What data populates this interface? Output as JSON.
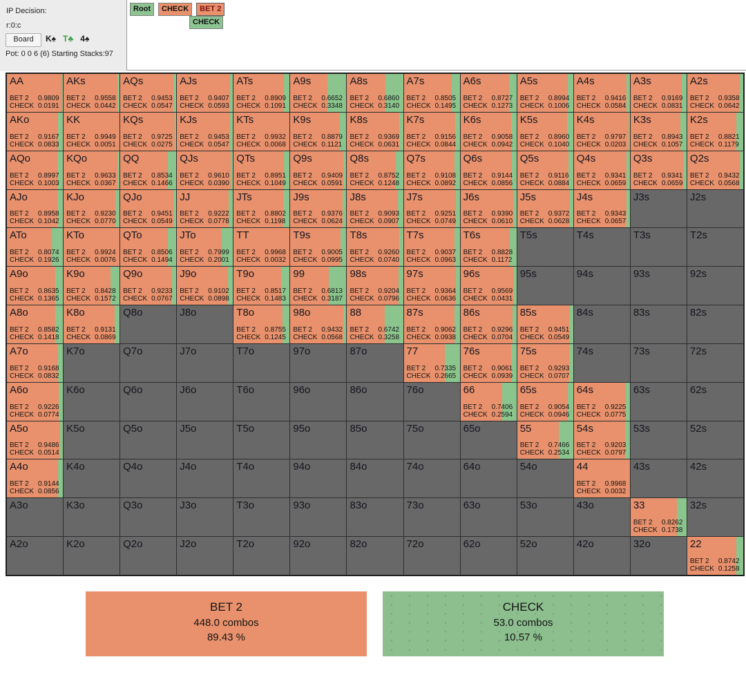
{
  "header": {
    "ip_decision_label": "IP Decision:",
    "node_id": "r:0:c",
    "board_button_label": "Board",
    "board_cards": [
      {
        "rank": "K",
        "suit": "♠",
        "color": "#1a1a1a"
      },
      {
        "rank": "T",
        "suit": "♣",
        "color": "#3f9e4a"
      },
      {
        "rank": "4",
        "suit": "♠",
        "color": "#1a1a1a"
      }
    ],
    "pot_line": "Pot: 0 0 6 (6) Starting Stacks:97"
  },
  "tree_nav": {
    "buttons": [
      {
        "label": "Root",
        "color": "green",
        "selected": false
      },
      {
        "label": "CHECK",
        "color": "orange",
        "selected": false
      },
      {
        "label": "BET 2",
        "color": "orange",
        "selected": true
      }
    ],
    "sub_buttons": [
      {
        "label": "CHECK",
        "color": "green",
        "selected": false
      }
    ]
  },
  "colors": {
    "bet": "#e8916c",
    "check": "#8bc58d",
    "not_in_range": "#686868"
  },
  "matrix": {
    "actions": [
      "BET 2",
      "CHECK"
    ],
    "rows": [
      [
        {
          "hand": "AA",
          "bet2": "0.9809",
          "check": "0.0191"
        },
        {
          "hand": "AKs",
          "bet2": "0.9558",
          "check": "0.0442"
        },
        {
          "hand": "AQs",
          "bet2": "0.9453",
          "check": "0.0547"
        },
        {
          "hand": "AJs",
          "bet2": "0.9407",
          "check": "0.0593"
        },
        {
          "hand": "ATs",
          "bet2": "0.8909",
          "check": "0.1091"
        },
        {
          "hand": "A9s",
          "bet2": "0.6652",
          "check": "0.3348"
        },
        {
          "hand": "A8s",
          "bet2": "0.6860",
          "check": "0.3140"
        },
        {
          "hand": "A7s",
          "bet2": "0.8505",
          "check": "0.1495"
        },
        {
          "hand": "A6s",
          "bet2": "0.8727",
          "check": "0.1273"
        },
        {
          "hand": "A5s",
          "bet2": "0.8994",
          "check": "0.1006"
        },
        {
          "hand": "A4s",
          "bet2": "0.9416",
          "check": "0.0584"
        },
        {
          "hand": "A3s",
          "bet2": "0.9169",
          "check": "0.0831"
        },
        {
          "hand": "A2s",
          "bet2": "0.9358",
          "check": "0.0642"
        }
      ],
      [
        {
          "hand": "AKo",
          "bet2": "0.9167",
          "check": "0.0833"
        },
        {
          "hand": "KK",
          "bet2": "0.9949",
          "check": "0.0051"
        },
        {
          "hand": "KQs",
          "bet2": "0.9725",
          "check": "0.0275"
        },
        {
          "hand": "KJs",
          "bet2": "0.9453",
          "check": "0.0547"
        },
        {
          "hand": "KTs",
          "bet2": "0.9932",
          "check": "0.0068"
        },
        {
          "hand": "K9s",
          "bet2": "0.8879",
          "check": "0.1121"
        },
        {
          "hand": "K8s",
          "bet2": "0.9369",
          "check": "0.0631"
        },
        {
          "hand": "K7s",
          "bet2": "0.9156",
          "check": "0.0844"
        },
        {
          "hand": "K6s",
          "bet2": "0.9058",
          "check": "0.0942"
        },
        {
          "hand": "K5s",
          "bet2": "0.8960",
          "check": "0.1040"
        },
        {
          "hand": "K4s",
          "bet2": "0.9797",
          "check": "0.0203"
        },
        {
          "hand": "K3s",
          "bet2": "0.8943",
          "check": "0.1057"
        },
        {
          "hand": "K2s",
          "bet2": "0.8821",
          "check": "0.1179"
        }
      ],
      [
        {
          "hand": "AQo",
          "bet2": "0.8997",
          "check": "0.1003"
        },
        {
          "hand": "KQo",
          "bet2": "0.9633",
          "check": "0.0367"
        },
        {
          "hand": "QQ",
          "bet2": "0.8534",
          "check": "0.1466"
        },
        {
          "hand": "QJs",
          "bet2": "0.9610",
          "check": "0.0390"
        },
        {
          "hand": "QTs",
          "bet2": "0.8951",
          "check": "0.1049"
        },
        {
          "hand": "Q9s",
          "bet2": "0.9409",
          "check": "0.0591"
        },
        {
          "hand": "Q8s",
          "bet2": "0.8752",
          "check": "0.1248"
        },
        {
          "hand": "Q7s",
          "bet2": "0.9108",
          "check": "0.0892"
        },
        {
          "hand": "Q6s",
          "bet2": "0.9144",
          "check": "0.0856"
        },
        {
          "hand": "Q5s",
          "bet2": "0.9116",
          "check": "0.0884"
        },
        {
          "hand": "Q4s",
          "bet2": "0.9341",
          "check": "0.0659"
        },
        {
          "hand": "Q3s",
          "bet2": "0.9341",
          "check": "0.0659"
        },
        {
          "hand": "Q2s",
          "bet2": "0.9432",
          "check": "0.0568"
        }
      ],
      [
        {
          "hand": "AJo",
          "bet2": "0.8958",
          "check": "0.1042"
        },
        {
          "hand": "KJo",
          "bet2": "0.9230",
          "check": "0.0770"
        },
        {
          "hand": "QJo",
          "bet2": "0.9451",
          "check": "0.0549"
        },
        {
          "hand": "JJ",
          "bet2": "0.9222",
          "check": "0.0778"
        },
        {
          "hand": "JTs",
          "bet2": "0.8802",
          "check": "0.1198"
        },
        {
          "hand": "J9s",
          "bet2": "0.9376",
          "check": "0.0624"
        },
        {
          "hand": "J8s",
          "bet2": "0.9093",
          "check": "0.0907"
        },
        {
          "hand": "J7s",
          "bet2": "0.9251",
          "check": "0.0749"
        },
        {
          "hand": "J6s",
          "bet2": "0.9390",
          "check": "0.0610"
        },
        {
          "hand": "J5s",
          "bet2": "0.9372",
          "check": "0.0628"
        },
        {
          "hand": "J4s",
          "bet2": "0.9343",
          "check": "0.0657"
        },
        {
          "hand": "J3s"
        },
        {
          "hand": "J2s"
        }
      ],
      [
        {
          "hand": "ATo",
          "bet2": "0.8074",
          "check": "0.1926"
        },
        {
          "hand": "KTo",
          "bet2": "0.9924",
          "check": "0.0076"
        },
        {
          "hand": "QTo",
          "bet2": "0.8506",
          "check": "0.1494"
        },
        {
          "hand": "JTo",
          "bet2": "0.7999",
          "check": "0.2001"
        },
        {
          "hand": "TT",
          "bet2": "0.9968",
          "check": "0.0032"
        },
        {
          "hand": "T9s",
          "bet2": "0.9005",
          "check": "0.0995"
        },
        {
          "hand": "T8s",
          "bet2": "0.9260",
          "check": "0.0740"
        },
        {
          "hand": "T7s",
          "bet2": "0.9037",
          "check": "0.0963"
        },
        {
          "hand": "T6s",
          "bet2": "0.8828",
          "check": "0.1172"
        },
        {
          "hand": "T5s"
        },
        {
          "hand": "T4s"
        },
        {
          "hand": "T3s"
        },
        {
          "hand": "T2s"
        }
      ],
      [
        {
          "hand": "A9o",
          "bet2": "0.8635",
          "check": "0.1365"
        },
        {
          "hand": "K9o",
          "bet2": "0.8428",
          "check": "0.1572"
        },
        {
          "hand": "Q9o",
          "bet2": "0.9233",
          "check": "0.0767"
        },
        {
          "hand": "J9o",
          "bet2": "0.9102",
          "check": "0.0898"
        },
        {
          "hand": "T9o",
          "bet2": "0.8517",
          "check": "0.1483"
        },
        {
          "hand": "99",
          "bet2": "0.6813",
          "check": "0.3187"
        },
        {
          "hand": "98s",
          "bet2": "0.9204",
          "check": "0.0796"
        },
        {
          "hand": "97s",
          "bet2": "0.9364",
          "check": "0.0636"
        },
        {
          "hand": "96s",
          "bet2": "0.9569",
          "check": "0.0431"
        },
        {
          "hand": "95s"
        },
        {
          "hand": "94s"
        },
        {
          "hand": "93s"
        },
        {
          "hand": "92s"
        }
      ],
      [
        {
          "hand": "A8o",
          "bet2": "0.8582",
          "check": "0.1418"
        },
        {
          "hand": "K8o",
          "bet2": "0.9131",
          "check": "0.0869"
        },
        {
          "hand": "Q8o"
        },
        {
          "hand": "J8o"
        },
        {
          "hand": "T8o",
          "bet2": "0.8755",
          "check": "0.1245"
        },
        {
          "hand": "98o",
          "bet2": "0.9432",
          "check": "0.0568"
        },
        {
          "hand": "88",
          "bet2": "0.6742",
          "check": "0.3258"
        },
        {
          "hand": "87s",
          "bet2": "0.9062",
          "check": "0.0938"
        },
        {
          "hand": "86s",
          "bet2": "0.9296",
          "check": "0.0704"
        },
        {
          "hand": "85s",
          "bet2": "0.9451",
          "check": "0.0549"
        },
        {
          "hand": "84s"
        },
        {
          "hand": "83s"
        },
        {
          "hand": "82s"
        }
      ],
      [
        {
          "hand": "A7o",
          "bet2": "0.9168",
          "check": "0.0832"
        },
        {
          "hand": "K7o"
        },
        {
          "hand": "Q7o"
        },
        {
          "hand": "J7o"
        },
        {
          "hand": "T7o"
        },
        {
          "hand": "97o"
        },
        {
          "hand": "87o"
        },
        {
          "hand": "77",
          "bet2": "0.7335",
          "check": "0.2665"
        },
        {
          "hand": "76s",
          "bet2": "0.9061",
          "check": "0.0939"
        },
        {
          "hand": "75s",
          "bet2": "0.9293",
          "check": "0.0707"
        },
        {
          "hand": "74s"
        },
        {
          "hand": "73s"
        },
        {
          "hand": "72s"
        }
      ],
      [
        {
          "hand": "A6o",
          "bet2": "0.9226",
          "check": "0.0774"
        },
        {
          "hand": "K6o"
        },
        {
          "hand": "Q6o"
        },
        {
          "hand": "J6o"
        },
        {
          "hand": "T6o"
        },
        {
          "hand": "96o"
        },
        {
          "hand": "86o"
        },
        {
          "hand": "76o"
        },
        {
          "hand": "66",
          "bet2": "0.7406",
          "check": "0.2594"
        },
        {
          "hand": "65s",
          "bet2": "0.9054",
          "check": "0.0946"
        },
        {
          "hand": "64s",
          "bet2": "0.9225",
          "check": "0.0775"
        },
        {
          "hand": "63s"
        },
        {
          "hand": "62s"
        }
      ],
      [
        {
          "hand": "A5o",
          "bet2": "0.9486",
          "check": "0.0514"
        },
        {
          "hand": "K5o"
        },
        {
          "hand": "Q5o"
        },
        {
          "hand": "J5o"
        },
        {
          "hand": "T5o"
        },
        {
          "hand": "95o"
        },
        {
          "hand": "85o"
        },
        {
          "hand": "75o"
        },
        {
          "hand": "65o"
        },
        {
          "hand": "55",
          "bet2": "0.7466",
          "check": "0.2534"
        },
        {
          "hand": "54s",
          "bet2": "0.9203",
          "check": "0.0797"
        },
        {
          "hand": "53s"
        },
        {
          "hand": "52s"
        }
      ],
      [
        {
          "hand": "A4o",
          "bet2": "0.9144",
          "check": "0.0856"
        },
        {
          "hand": "K4o"
        },
        {
          "hand": "Q4o"
        },
        {
          "hand": "J4o"
        },
        {
          "hand": "T4o"
        },
        {
          "hand": "94o"
        },
        {
          "hand": "84o"
        },
        {
          "hand": "74o"
        },
        {
          "hand": "64o"
        },
        {
          "hand": "54o"
        },
        {
          "hand": "44",
          "bet2": "0.9968",
          "check": "0.0032"
        },
        {
          "hand": "43s"
        },
        {
          "hand": "42s"
        }
      ],
      [
        {
          "hand": "A3o"
        },
        {
          "hand": "K3o"
        },
        {
          "hand": "Q3o"
        },
        {
          "hand": "J3o"
        },
        {
          "hand": "T3o"
        },
        {
          "hand": "93o"
        },
        {
          "hand": "83o"
        },
        {
          "hand": "73o"
        },
        {
          "hand": "63o"
        },
        {
          "hand": "53o"
        },
        {
          "hand": "43o"
        },
        {
          "hand": "33",
          "bet2": "0.8262",
          "check": "0.1738"
        },
        {
          "hand": "32s"
        }
      ],
      [
        {
          "hand": "A2o"
        },
        {
          "hand": "K2o"
        },
        {
          "hand": "Q2o"
        },
        {
          "hand": "J2o"
        },
        {
          "hand": "T2o"
        },
        {
          "hand": "92o"
        },
        {
          "hand": "82o"
        },
        {
          "hand": "72o"
        },
        {
          "hand": "62o"
        },
        {
          "hand": "52o"
        },
        {
          "hand": "42o"
        },
        {
          "hand": "32o"
        },
        {
          "hand": "22",
          "bet2": "0.8742",
          "check": "0.1258"
        }
      ]
    ]
  },
  "summary": [
    {
      "label": "BET 2",
      "combos": "448.0 combos",
      "percent": "89.43 %",
      "color": "orange"
    },
    {
      "label": "CHECK",
      "combos": "53.0 combos",
      "percent": "10.57 %",
      "color": "green"
    }
  ]
}
